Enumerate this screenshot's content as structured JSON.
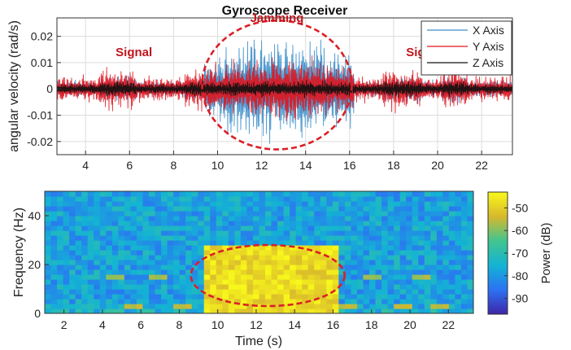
{
  "chart_data": [
    {
      "type": "line",
      "title": "Gyroscope Receiver",
      "xlabel": "",
      "ylabel": "angular velocity (rad/s)",
      "xlim": [
        2.7,
        23.4
      ],
      "ylim": [
        -0.025,
        0.027
      ],
      "x_ticks": [
        "4",
        "6",
        "8",
        "10",
        "12",
        "14",
        "16",
        "18",
        "20",
        "22"
      ],
      "y_ticks": [
        "-0.02",
        "-0.01",
        "0",
        "0.01",
        "0.02"
      ],
      "grid": true,
      "legend_position": "top-right",
      "series": [
        {
          "name": "X Axis",
          "color": "#3d8fc9",
          "baseline_amplitude": 0.004,
          "jamming_amplitude": 0.024
        },
        {
          "name": "Y Axis",
          "color": "#e0141e",
          "baseline_amplitude": 0.006,
          "jamming_amplitude": 0.015
        },
        {
          "name": "Z Axis",
          "color": "#111111",
          "baseline_amplitude": 0.0025,
          "jamming_amplitude": 0.004
        }
      ],
      "signal_bursts": [
        [
          4.6,
          6.3
        ],
        [
          8.5,
          9.4
        ],
        [
          17.5,
          19.3
        ],
        [
          20.2,
          21.4
        ]
      ],
      "jamming_interval": [
        9.4,
        16.2
      ],
      "annotations": [
        {
          "text": "Signal",
          "x": 6.2,
          "y": 0.0125
        },
        {
          "text": "Jamming",
          "x": 12.7,
          "y": 0.0255
        },
        {
          "text": "Signal",
          "x": 19.4,
          "y": 0.0125
        }
      ],
      "highlight_ellipse": {
        "x_center": 12.7,
        "y_center": 0.0015,
        "x_radius": 3.4,
        "y_radius": 0.0245
      }
    },
    {
      "type": "heatmap",
      "title": "",
      "xlabel": "Time (s)",
      "ylabel": "Frequency (Hz)",
      "xlim": [
        1,
        23.3
      ],
      "ylim": [
        0,
        50
      ],
      "x_ticks": [
        "2",
        "4",
        "6",
        "8",
        "10",
        "12",
        "14",
        "16",
        "18",
        "20",
        "22"
      ],
      "y_ticks": [
        "0",
        "20",
        "40"
      ],
      "colorbar_label": "Power (dB)",
      "colorbar_range": [
        -97,
        -43
      ],
      "colorbar_ticks": [
        "-50",
        "-60",
        "-70",
        "-80",
        "-90"
      ],
      "background_power_db": -78,
      "jamming_region": {
        "time": [
          9.2,
          16.2
        ],
        "freq": [
          0,
          28
        ],
        "power_db": -48
      },
      "tone_bands": [
        {
          "freq": 15.5,
          "time": [
            4.2,
            5.2
          ],
          "power_db": -58
        },
        {
          "freq": 15.5,
          "time": [
            6.5,
            7.5
          ],
          "power_db": -58
        },
        {
          "freq": 15.5,
          "time": [
            17.5,
            18.4
          ],
          "power_db": -58
        },
        {
          "freq": 15.5,
          "time": [
            20.0,
            21.0
          ],
          "power_db": -58
        },
        {
          "freq": 3.5,
          "time": [
            5.1,
            6.0
          ],
          "power_db": -56
        },
        {
          "freq": 3.5,
          "time": [
            7.8,
            8.6
          ],
          "power_db": -56
        },
        {
          "freq": 3.5,
          "time": [
            16.4,
            17.4
          ],
          "power_db": -56
        },
        {
          "freq": 3.5,
          "time": [
            19.1,
            20.1
          ],
          "power_db": -56
        },
        {
          "freq": 3.5,
          "time": [
            21.1,
            22.1
          ],
          "power_db": -56
        }
      ],
      "highlight_ellipse": {
        "x_center": 12.6,
        "y_center": 15.5,
        "x_radius": 4.0,
        "y_radius": 12.5
      }
    }
  ]
}
